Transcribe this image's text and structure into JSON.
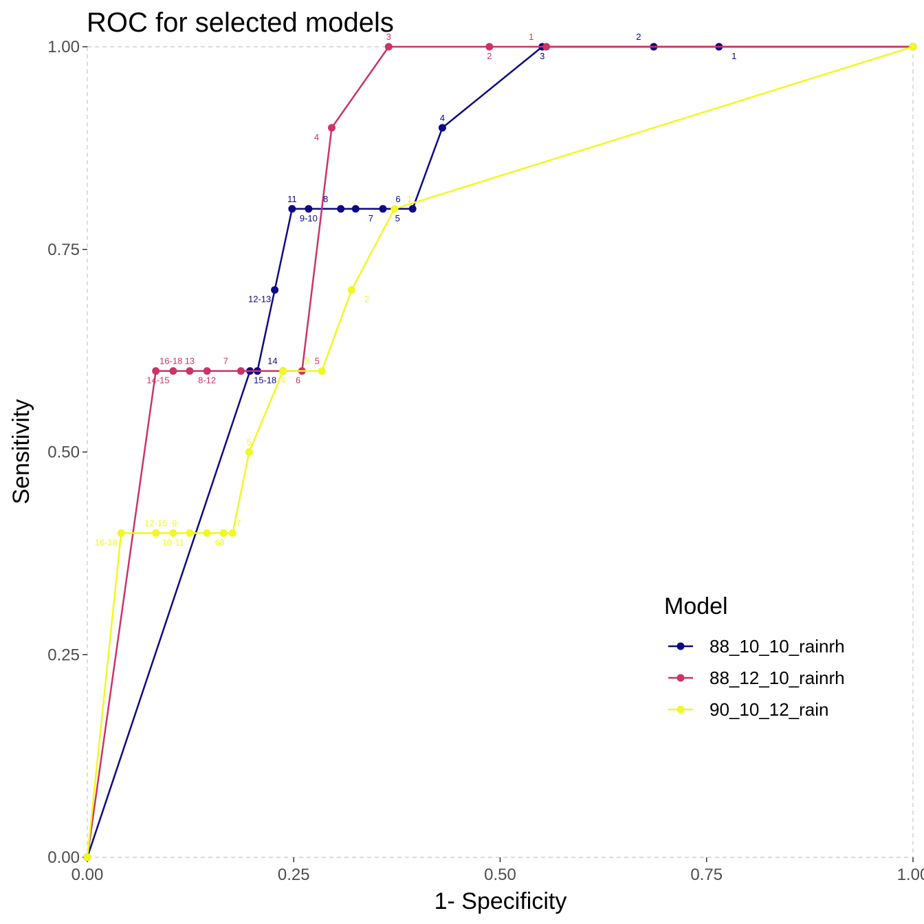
{
  "chart_data": {
    "type": "line",
    "title": "ROC for selected models",
    "xlabel": "1- Specificity",
    "ylabel": "Sensitivity",
    "xlim": [
      0,
      1
    ],
    "ylim": [
      0,
      1
    ],
    "x_ticks": [
      "0.00",
      "0.25",
      "0.50",
      "0.75",
      "1.00"
    ],
    "y_ticks": [
      "0.00",
      "0.25",
      "0.50",
      "0.75",
      "1.00"
    ],
    "grid": "dashed major gridlines at axis limits",
    "legend": {
      "title": "Model",
      "position": "right"
    },
    "series": [
      {
        "name": "88_10_10_rainrh",
        "color": "#0d0887",
        "points": [
          {
            "x": 0.0,
            "y": 0.0,
            "label": ""
          },
          {
            "x": 0.197,
            "y": 0.6,
            "label": "15-18"
          },
          {
            "x": 0.206,
            "y": 0.6,
            "label": "14"
          },
          {
            "x": 0.227,
            "y": 0.7,
            "label": "12-13"
          },
          {
            "x": 0.248,
            "y": 0.8,
            "label": "11"
          },
          {
            "x": 0.268,
            "y": 0.8,
            "label": "9-10"
          },
          {
            "x": 0.307,
            "y": 0.8,
            "label": "8"
          },
          {
            "x": 0.325,
            "y": 0.8,
            "label": "7"
          },
          {
            "x": 0.358,
            "y": 0.8,
            "label": "6"
          },
          {
            "x": 0.394,
            "y": 0.8,
            "label": "5"
          },
          {
            "x": 0.43,
            "y": 0.9,
            "label": "4"
          },
          {
            "x": 0.551,
            "y": 1.0,
            "label": "3"
          },
          {
            "x": 0.686,
            "y": 1.0,
            "label": "2"
          },
          {
            "x": 0.765,
            "y": 1.0,
            "label": "1"
          },
          {
            "x": 1.0,
            "y": 1.0,
            "label": ""
          }
        ]
      },
      {
        "name": "88_12_10_rainrh",
        "color": "#cc3366",
        "points": [
          {
            "x": 0.0,
            "y": 0.0,
            "label": ""
          },
          {
            "x": 0.083,
            "y": 0.6,
            "label": "16-18"
          },
          {
            "x": 0.104,
            "y": 0.6,
            "label": "14-15"
          },
          {
            "x": 0.124,
            "y": 0.6,
            "label": "13"
          },
          {
            "x": 0.145,
            "y": 0.6,
            "label": "8-12"
          },
          {
            "x": 0.186,
            "y": 0.6,
            "label": "7"
          },
          {
            "x": 0.237,
            "y": 0.6,
            "label": "6"
          },
          {
            "x": 0.26,
            "y": 0.6,
            "label": "5"
          },
          {
            "x": 0.296,
            "y": 0.9,
            "label": "4"
          },
          {
            "x": 0.365,
            "y": 1.0,
            "label": "3"
          },
          {
            "x": 0.487,
            "y": 1.0,
            "label": "2"
          },
          {
            "x": 0.556,
            "y": 1.0,
            "label": "1"
          },
          {
            "x": 1.0,
            "y": 1.0,
            "label": ""
          }
        ]
      },
      {
        "name": "90_10_12_rain",
        "color": "#f0f921",
        "points": [
          {
            "x": 0.0,
            "y": 0.0,
            "label": ""
          },
          {
            "x": 0.041,
            "y": 0.4,
            "label": "16-18"
          },
          {
            "x": 0.083,
            "y": 0.4,
            "label": "12-15"
          },
          {
            "x": 0.104,
            "y": 0.4,
            "label": "10-11"
          },
          {
            "x": 0.124,
            "y": 0.4,
            "label": "9"
          },
          {
            "x": 0.145,
            "y": 0.4,
            "label": "8"
          },
          {
            "x": 0.165,
            "y": 0.4,
            "label": "7"
          },
          {
            "x": 0.176,
            "y": 0.4,
            "label": "6"
          },
          {
            "x": 0.196,
            "y": 0.5,
            "label": "5"
          },
          {
            "x": 0.237,
            "y": 0.6,
            "label": "4"
          },
          {
            "x": 0.284,
            "y": 0.6,
            "label": "3"
          },
          {
            "x": 0.32,
            "y": 0.7,
            "label": "2"
          },
          {
            "x": 0.372,
            "y": 0.8,
            "label": "1"
          },
          {
            "x": 1.0,
            "y": 1.0,
            "label": ""
          }
        ]
      }
    ]
  }
}
